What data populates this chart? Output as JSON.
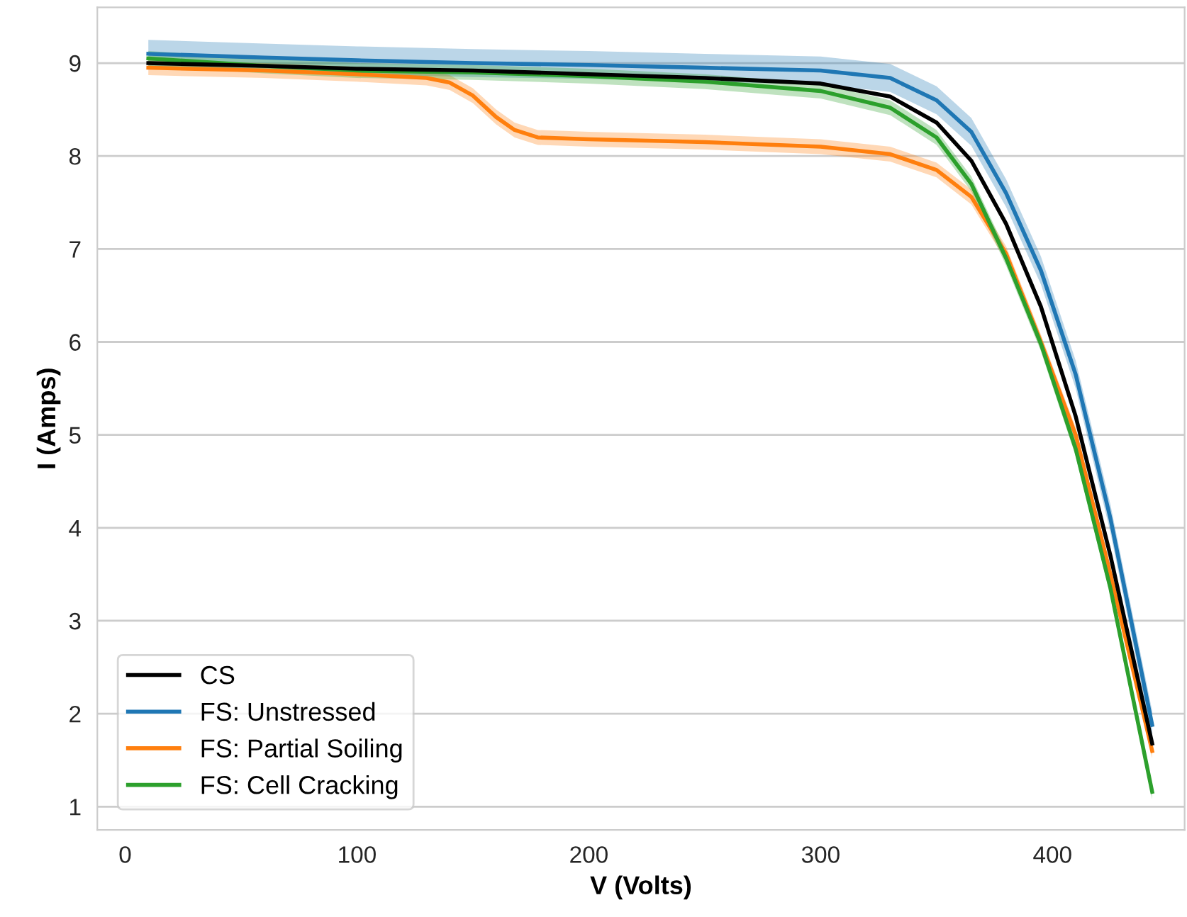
{
  "chart_data": {
    "type": "line",
    "xlabel": "V (Volts)",
    "ylabel": "I (Amps)",
    "x": [
      10,
      60,
      100,
      150,
      200,
      250,
      300,
      330,
      350,
      365,
      380,
      395,
      410,
      425,
      443
    ],
    "series": [
      {
        "name": "CS",
        "color": "#000000",
        "values": [
          9.0,
          8.97,
          8.94,
          8.92,
          8.88,
          8.84,
          8.78,
          8.64,
          8.36,
          7.95,
          7.27,
          6.38,
          5.2,
          3.7,
          1.68
        ]
      },
      {
        "name": "FS: Unstressed",
        "color": "#1f77b4",
        "values": [
          9.1,
          9.06,
          9.03,
          9.0,
          8.98,
          8.95,
          8.92,
          8.84,
          8.6,
          8.26,
          7.6,
          6.77,
          5.65,
          4.1,
          1.88
        ],
        "lower": [
          8.95,
          8.91,
          8.88,
          8.85,
          8.83,
          8.8,
          8.77,
          8.69,
          8.45,
          8.11,
          7.45,
          6.62,
          5.5,
          3.95,
          1.73
        ],
        "upper": [
          9.25,
          9.21,
          9.18,
          9.15,
          9.13,
          9.1,
          9.07,
          8.99,
          8.75,
          8.41,
          7.75,
          6.92,
          5.8,
          4.25,
          2.03
        ]
      },
      {
        "name": "FS: Partial Soiling",
        "color": "#ff7f0e",
        "x": [
          10,
          60,
          100,
          130,
          140,
          150,
          160,
          168,
          178,
          200,
          250,
          300,
          330,
          350,
          365,
          380,
          395,
          410,
          425,
          443
        ],
        "values": [
          8.95,
          8.92,
          8.88,
          8.84,
          8.79,
          8.65,
          8.42,
          8.28,
          8.2,
          8.18,
          8.15,
          8.1,
          8.02,
          7.85,
          7.56,
          6.95,
          6.0,
          5.0,
          3.5,
          1.6
        ],
        "lower": [
          8.87,
          8.84,
          8.8,
          8.76,
          8.71,
          8.57,
          8.34,
          8.2,
          8.12,
          8.1,
          8.07,
          8.02,
          7.94,
          7.77,
          7.48,
          6.87,
          5.92,
          4.92,
          3.42,
          1.52
        ],
        "upper": [
          9.03,
          9.0,
          8.96,
          8.92,
          8.87,
          8.73,
          8.5,
          8.36,
          8.28,
          8.26,
          8.23,
          8.18,
          8.1,
          7.93,
          7.64,
          7.03,
          6.08,
          5.08,
          3.58,
          1.68
        ]
      },
      {
        "name": "FS: Cell Cracking",
        "color": "#2ca02c",
        "values": [
          9.05,
          8.97,
          8.92,
          8.9,
          8.86,
          8.8,
          8.7,
          8.52,
          8.2,
          7.7,
          6.9,
          5.98,
          4.85,
          3.35,
          1.16
        ],
        "lower": [
          8.97,
          8.89,
          8.84,
          8.82,
          8.78,
          8.72,
          8.62,
          8.44,
          8.12,
          7.62,
          6.82,
          5.9,
          4.77,
          3.27,
          1.08
        ],
        "upper": [
          9.13,
          9.05,
          9.0,
          8.98,
          8.94,
          8.88,
          8.78,
          8.6,
          8.28,
          7.78,
          6.98,
          6.06,
          4.93,
          3.43,
          1.24
        ]
      }
    ],
    "xlim": [
      -12,
      457
    ],
    "ylim": [
      0.75,
      9.6
    ],
    "xticks": [
      0,
      100,
      200,
      300,
      400
    ],
    "yticks": [
      1,
      2,
      3,
      4,
      5,
      6,
      7,
      8,
      9
    ],
    "grid": "y",
    "legend": "bottom left",
    "marker": "none",
    "line_style": "solid"
  }
}
